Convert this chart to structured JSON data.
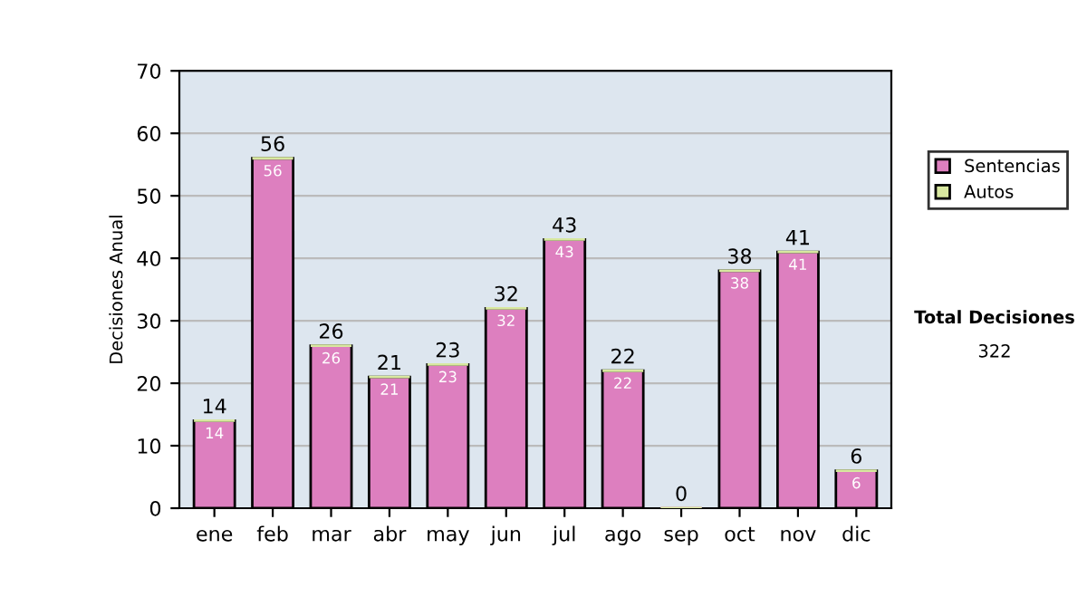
{
  "chart_data": {
    "type": "bar",
    "stacked": true,
    "ylabel": "Decisiones Anual",
    "categories": [
      "ene",
      "feb",
      "mar",
      "abr",
      "may",
      "jun",
      "jul",
      "ago",
      "sep",
      "oct",
      "nov",
      "dic"
    ],
    "series": [
      {
        "name": "Sentencias",
        "color": "#dd7fbf",
        "values": [
          14,
          56,
          26,
          21,
          23,
          32,
          43,
          22,
          0,
          38,
          41,
          6
        ],
        "value_labels": [
          "14",
          "56",
          "26",
          "21",
          "23",
          "32",
          "43",
          "22",
          null,
          "38",
          "41",
          "6"
        ]
      },
      {
        "name": "Autos",
        "color": "#d8e8a0",
        "values": [
          0,
          0,
          0,
          0,
          0,
          0,
          0,
          0,
          0,
          0,
          0,
          0
        ]
      }
    ],
    "totals": [
      "14",
      "56",
      "26",
      "21",
      "23",
      "32",
      "43",
      "22",
      "0",
      "38",
      "41",
      "6"
    ],
    "ylim": [
      0,
      70
    ],
    "yticks": [
      0,
      10,
      20,
      30,
      40,
      50,
      60,
      70
    ],
    "grid": "y",
    "legend": "right",
    "annotations": [
      "Total Decisiones",
      "322"
    ]
  }
}
